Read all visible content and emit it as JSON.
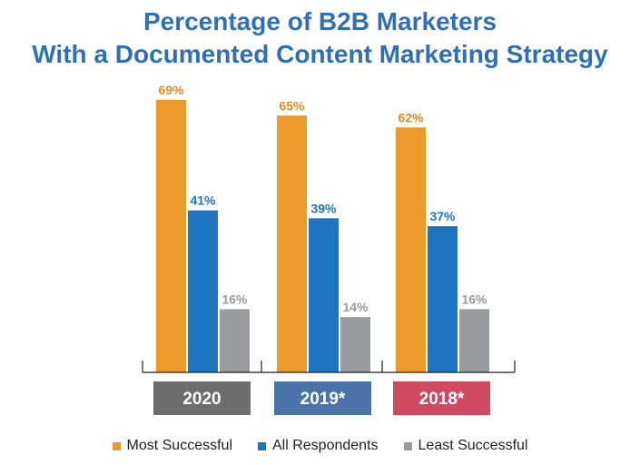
{
  "chart_data": {
    "type": "bar",
    "title_line1": "Percentage of B2B Marketers",
    "title_line2": "With a Documented Content Marketing Strategy",
    "ylim": [
      0,
      100
    ],
    "categories": [
      {
        "label": "2020",
        "color": "#6d6d6d"
      },
      {
        "label": "2019*",
        "color": "#4a73a9"
      },
      {
        "label": "2018*",
        "color": "#cf4a5e"
      }
    ],
    "series": [
      {
        "name": "Most Successful",
        "color": "#ec9a29",
        "label_color": "#e88a1a",
        "values": [
          69,
          65,
          62
        ]
      },
      {
        "name": "All Respondents",
        "color": "#1f74c1",
        "label_color": "#1f74c1",
        "values": [
          41,
          39,
          37
        ]
      },
      {
        "name": "Least Successful",
        "color": "#999b9e",
        "label_color": "#9a9b9d",
        "values": [
          16,
          14,
          16
        ]
      }
    ],
    "value_suffix": "%"
  }
}
